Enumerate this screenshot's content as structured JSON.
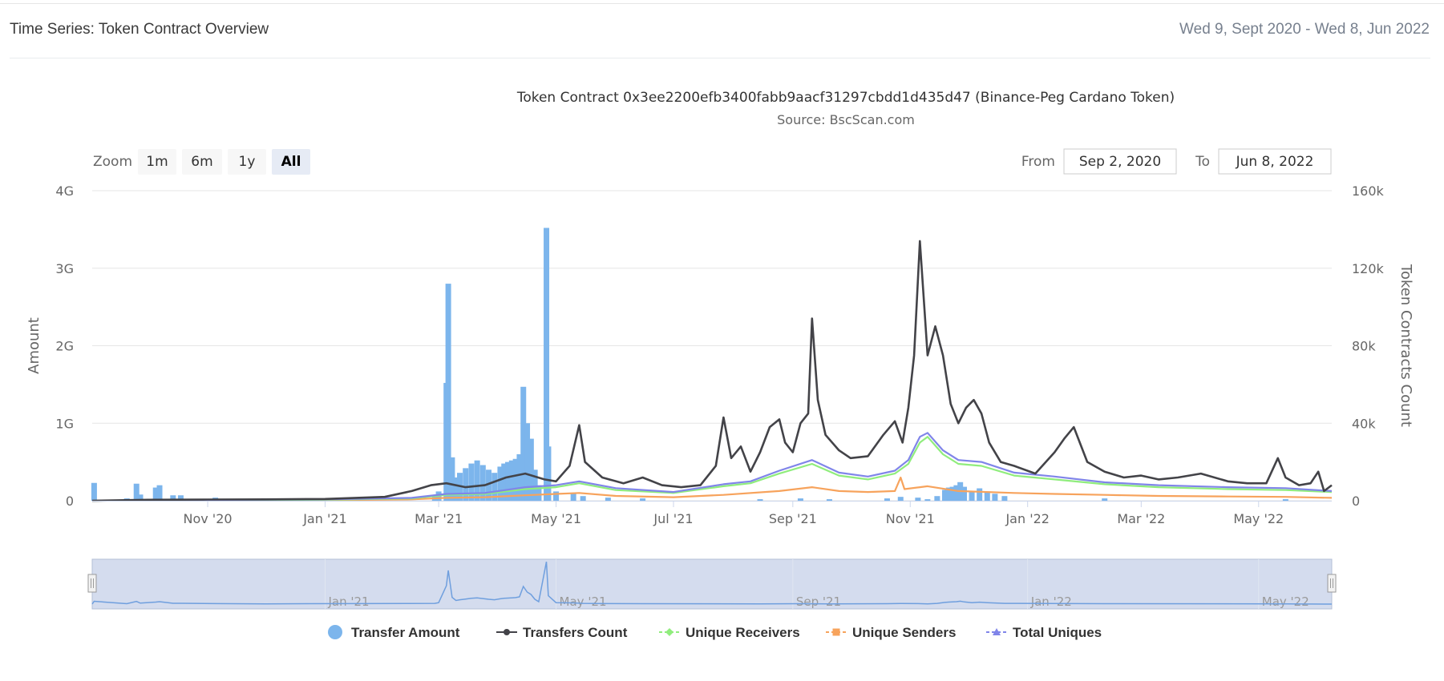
{
  "header": {
    "title": "Time Series: Token Contract Overview",
    "date_range": "Wed 9, Sept 2020 - Wed 8, Jun 2022"
  },
  "controls": {
    "zoom_label": "Zoom",
    "zoom_buttons": [
      "1m",
      "6m",
      "1y",
      "All"
    ],
    "active_zoom": "All",
    "from_label": "From",
    "from_value": "Sep 2, 2020",
    "to_label": "To",
    "to_value": "Jun 8, 2022"
  },
  "colors": {
    "transfer_amount": "#7cb5ec",
    "transfers_count": "#434348",
    "unique_receivers": "#90ed7d",
    "unique_senders": "#f7a35c",
    "total_uniques": "#8085e9",
    "navigator_fill": "#ccd6eb",
    "navigator_line": "#6f9fde"
  },
  "chart_data": {
    "type": "line",
    "title": "Token Contract 0x3ee2200efb3400fabb9aacf31297cbdd1d435d47 (Binance-Peg Cardano Token)",
    "subtitle": "Source: BscScan.com",
    "x_range": [
      "2020-09-02",
      "2022-06-08"
    ],
    "x_ticks": [
      {
        "date": "2020-11-01",
        "label": "Nov '20"
      },
      {
        "date": "2021-01-01",
        "label": "Jan '21"
      },
      {
        "date": "2021-03-01",
        "label": "Mar '21"
      },
      {
        "date": "2021-05-01",
        "label": "May '21"
      },
      {
        "date": "2021-07-01",
        "label": "Jul '21"
      },
      {
        "date": "2021-09-01",
        "label": "Sep '21"
      },
      {
        "date": "2021-11-01",
        "label": "Nov '21"
      },
      {
        "date": "2022-01-01",
        "label": "Jan '22"
      },
      {
        "date": "2022-03-01",
        "label": "Mar '22"
      },
      {
        "date": "2022-05-01",
        "label": "May '22"
      }
    ],
    "navigator_ticks": [
      {
        "date": "2021-01-01",
        "label": "Jan '21"
      },
      {
        "date": "2021-05-01",
        "label": "May '21"
      },
      {
        "date": "2021-09-01",
        "label": "Sep '21"
      },
      {
        "date": "2022-01-01",
        "label": "Jan '22"
      },
      {
        "date": "2022-05-01",
        "label": "May '22"
      }
    ],
    "y_left": {
      "label": "Amount",
      "min": 0,
      "max": 4000000000,
      "tick_values": [
        0,
        1000000000,
        2000000000,
        3000000000,
        4000000000
      ],
      "tick_labels": [
        "0",
        "1G",
        "2G",
        "3G",
        "4G"
      ]
    },
    "y_right": {
      "label": "Token Contracts Count",
      "min": 0,
      "max": 160000,
      "tick_values": [
        0,
        40000,
        80000,
        120000,
        160000
      ],
      "tick_labels": [
        "0",
        "40k",
        "80k",
        "120k",
        "160k"
      ]
    },
    "grid": true,
    "legend_position": "bottom-center",
    "series": [
      {
        "name": "Transfer Amount",
        "type": "column",
        "axis": "left",
        "color_key": "transfer_amount",
        "marker": "circle",
        "points": [
          [
            "2020-09-03",
            230000000
          ],
          [
            "2020-09-20",
            30000000
          ],
          [
            "2020-09-25",
            220000000
          ],
          [
            "2020-09-27",
            80000000
          ],
          [
            "2020-10-05",
            170000000
          ],
          [
            "2020-10-07",
            200000000
          ],
          [
            "2020-10-14",
            70000000
          ],
          [
            "2020-10-18",
            70000000
          ],
          [
            "2020-11-05",
            40000000
          ],
          [
            "2020-12-01",
            20000000
          ],
          [
            "2021-02-27",
            60000000
          ],
          [
            "2021-03-01",
            120000000
          ],
          [
            "2021-03-05",
            1520000000
          ],
          [
            "2021-03-06",
            2800000000
          ],
          [
            "2021-03-08",
            560000000
          ],
          [
            "2021-03-10",
            300000000
          ],
          [
            "2021-03-12",
            360000000
          ],
          [
            "2021-03-15",
            420000000
          ],
          [
            "2021-03-18",
            480000000
          ],
          [
            "2021-03-21",
            520000000
          ],
          [
            "2021-03-24",
            460000000
          ],
          [
            "2021-03-27",
            400000000
          ],
          [
            "2021-03-30",
            360000000
          ],
          [
            "2021-04-02",
            440000000
          ],
          [
            "2021-04-04",
            480000000
          ],
          [
            "2021-04-06",
            500000000
          ],
          [
            "2021-04-08",
            520000000
          ],
          [
            "2021-04-10",
            540000000
          ],
          [
            "2021-04-12",
            600000000
          ],
          [
            "2021-04-14",
            1470000000
          ],
          [
            "2021-04-16",
            1000000000
          ],
          [
            "2021-04-18",
            800000000
          ],
          [
            "2021-04-20",
            400000000
          ],
          [
            "2021-04-22",
            200000000
          ],
          [
            "2021-04-26",
            3520000000
          ],
          [
            "2021-04-27",
            700000000
          ],
          [
            "2021-05-01",
            120000000
          ],
          [
            "2021-05-10",
            100000000
          ],
          [
            "2021-05-15",
            60000000
          ],
          [
            "2021-05-28",
            40000000
          ],
          [
            "2021-06-15",
            30000000
          ],
          [
            "2021-08-15",
            20000000
          ],
          [
            "2021-09-05",
            30000000
          ],
          [
            "2021-09-20",
            20000000
          ],
          [
            "2021-10-20",
            30000000
          ],
          [
            "2021-10-27",
            50000000
          ],
          [
            "2021-11-05",
            40000000
          ],
          [
            "2021-11-10",
            20000000
          ],
          [
            "2021-11-15",
            60000000
          ],
          [
            "2021-11-19",
            140000000
          ],
          [
            "2021-11-21",
            170000000
          ],
          [
            "2021-11-23",
            180000000
          ],
          [
            "2021-11-25",
            200000000
          ],
          [
            "2021-11-27",
            240000000
          ],
          [
            "2021-11-29",
            180000000
          ],
          [
            "2021-12-03",
            120000000
          ],
          [
            "2021-12-07",
            160000000
          ],
          [
            "2021-12-11",
            120000000
          ],
          [
            "2021-12-15",
            90000000
          ],
          [
            "2021-12-20",
            60000000
          ],
          [
            "2022-02-10",
            30000000
          ],
          [
            "2022-05-15",
            20000000
          ]
        ]
      },
      {
        "name": "Transfers Count",
        "type": "line",
        "axis": "right",
        "color_key": "transfers_count",
        "marker": "circle",
        "points": [
          [
            "2020-09-02",
            0
          ],
          [
            "2020-10-01",
            500
          ],
          [
            "2020-11-01",
            600
          ],
          [
            "2020-12-01",
            700
          ],
          [
            "2021-01-01",
            900
          ],
          [
            "2021-02-01",
            2000
          ],
          [
            "2021-02-15",
            5000
          ],
          [
            "2021-02-25",
            8000
          ],
          [
            "2021-03-05",
            9000
          ],
          [
            "2021-03-15",
            7000
          ],
          [
            "2021-03-25",
            8000
          ],
          [
            "2021-04-05",
            12000
          ],
          [
            "2021-04-15",
            14000
          ],
          [
            "2021-04-25",
            11000
          ],
          [
            "2021-05-01",
            10000
          ],
          [
            "2021-05-08",
            18000
          ],
          [
            "2021-05-13",
            39000
          ],
          [
            "2021-05-16",
            20000
          ],
          [
            "2021-05-25",
            12000
          ],
          [
            "2021-06-05",
            9000
          ],
          [
            "2021-06-15",
            12000
          ],
          [
            "2021-06-25",
            8000
          ],
          [
            "2021-07-05",
            7000
          ],
          [
            "2021-07-15",
            8000
          ],
          [
            "2021-07-23",
            18000
          ],
          [
            "2021-07-27",
            43000
          ],
          [
            "2021-07-31",
            22000
          ],
          [
            "2021-08-05",
            28000
          ],
          [
            "2021-08-10",
            15000
          ],
          [
            "2021-08-15",
            25000
          ],
          [
            "2021-08-20",
            38000
          ],
          [
            "2021-08-25",
            42000
          ],
          [
            "2021-08-28",
            30000
          ],
          [
            "2021-09-01",
            25000
          ],
          [
            "2021-09-05",
            40000
          ],
          [
            "2021-09-09",
            45000
          ],
          [
            "2021-09-11",
            94000
          ],
          [
            "2021-09-14",
            52000
          ],
          [
            "2021-09-18",
            34000
          ],
          [
            "2021-09-25",
            26000
          ],
          [
            "2021-10-01",
            22000
          ],
          [
            "2021-10-10",
            23000
          ],
          [
            "2021-10-18",
            34000
          ],
          [
            "2021-10-24",
            41000
          ],
          [
            "2021-10-28",
            30000
          ],
          [
            "2021-10-31",
            48000
          ],
          [
            "2021-11-03",
            75000
          ],
          [
            "2021-11-06",
            134000
          ],
          [
            "2021-11-10",
            75000
          ],
          [
            "2021-11-14",
            90000
          ],
          [
            "2021-11-18",
            75000
          ],
          [
            "2021-11-22",
            50000
          ],
          [
            "2021-11-26",
            40000
          ],
          [
            "2021-11-30",
            48000
          ],
          [
            "2021-12-04",
            52000
          ],
          [
            "2021-12-08",
            45000
          ],
          [
            "2021-12-12",
            30000
          ],
          [
            "2021-12-18",
            20000
          ],
          [
            "2021-12-25",
            18000
          ],
          [
            "2022-01-05",
            14000
          ],
          [
            "2022-01-15",
            25000
          ],
          [
            "2022-01-20",
            32000
          ],
          [
            "2022-01-25",
            38000
          ],
          [
            "2022-02-01",
            20000
          ],
          [
            "2022-02-10",
            15000
          ],
          [
            "2022-02-20",
            12000
          ],
          [
            "2022-03-01",
            13000
          ],
          [
            "2022-03-10",
            11000
          ],
          [
            "2022-03-20",
            12000
          ],
          [
            "2022-04-01",
            14000
          ],
          [
            "2022-04-15",
            10000
          ],
          [
            "2022-04-25",
            9000
          ],
          [
            "2022-05-05",
            9000
          ],
          [
            "2022-05-11",
            22000
          ],
          [
            "2022-05-15",
            12000
          ],
          [
            "2022-05-22",
            8000
          ],
          [
            "2022-05-28",
            9000
          ],
          [
            "2022-06-01",
            15000
          ],
          [
            "2022-06-04",
            5000
          ],
          [
            "2022-06-08",
            8000
          ]
        ]
      },
      {
        "name": "Unique Receivers",
        "type": "line",
        "axis": "right",
        "color_key": "unique_receivers",
        "marker": "diamond",
        "points": [
          [
            "2020-09-02",
            0
          ],
          [
            "2020-11-01",
            300
          ],
          [
            "2021-01-01",
            500
          ],
          [
            "2021-02-15",
            1200
          ],
          [
            "2021-03-05",
            3000
          ],
          [
            "2021-03-25",
            3500
          ],
          [
            "2021-04-15",
            6000
          ],
          [
            "2021-05-01",
            7000
          ],
          [
            "2021-05-13",
            9000
          ],
          [
            "2021-06-01",
            5500
          ],
          [
            "2021-07-01",
            4000
          ],
          [
            "2021-07-27",
            7500
          ],
          [
            "2021-08-10",
            9000
          ],
          [
            "2021-08-25",
            14000
          ],
          [
            "2021-09-11",
            19000
          ],
          [
            "2021-09-25",
            13000
          ],
          [
            "2021-10-10",
            11000
          ],
          [
            "2021-10-24",
            14000
          ],
          [
            "2021-10-31",
            19000
          ],
          [
            "2021-11-06",
            30000
          ],
          [
            "2021-11-10",
            33000
          ],
          [
            "2021-11-18",
            24000
          ],
          [
            "2021-11-26",
            19000
          ],
          [
            "2021-12-08",
            18000
          ],
          [
            "2021-12-25",
            13000
          ],
          [
            "2022-01-15",
            11000
          ],
          [
            "2022-02-10",
            8500
          ],
          [
            "2022-03-10",
            7000
          ],
          [
            "2022-04-15",
            6000
          ],
          [
            "2022-05-15",
            5500
          ],
          [
            "2022-06-08",
            4500
          ]
        ]
      },
      {
        "name": "Unique Senders",
        "type": "line",
        "axis": "right",
        "color_key": "unique_senders",
        "marker": "square",
        "points": [
          [
            "2020-09-02",
            0
          ],
          [
            "2020-11-01",
            200
          ],
          [
            "2021-01-01",
            300
          ],
          [
            "2021-02-15",
            700
          ],
          [
            "2021-03-05",
            1500
          ],
          [
            "2021-03-25",
            1800
          ],
          [
            "2021-04-15",
            2800
          ],
          [
            "2021-05-01",
            3500
          ],
          [
            "2021-05-13",
            4000
          ],
          [
            "2021-06-01",
            2500
          ],
          [
            "2021-07-01",
            1800
          ],
          [
            "2021-07-27",
            3000
          ],
          [
            "2021-08-25",
            5000
          ],
          [
            "2021-09-11",
            7000
          ],
          [
            "2021-09-25",
            5000
          ],
          [
            "2021-10-10",
            4500
          ],
          [
            "2021-10-24",
            5000
          ],
          [
            "2021-10-27",
            12000
          ],
          [
            "2021-10-29",
            6000
          ],
          [
            "2021-11-06",
            7000
          ],
          [
            "2021-11-10",
            7500
          ],
          [
            "2021-11-26",
            5000
          ],
          [
            "2021-12-25",
            4000
          ],
          [
            "2022-01-15",
            3500
          ],
          [
            "2022-02-10",
            3000
          ],
          [
            "2022-03-10",
            2500
          ],
          [
            "2022-04-15",
            2200
          ],
          [
            "2022-05-15",
            2000
          ],
          [
            "2022-06-08",
            1500
          ]
        ]
      },
      {
        "name": "Total Uniques",
        "type": "line",
        "axis": "right",
        "color_key": "total_uniques",
        "marker": "triangle",
        "points": [
          [
            "2020-09-02",
            0
          ],
          [
            "2020-11-01",
            400
          ],
          [
            "2021-01-01",
            700
          ],
          [
            "2021-02-15",
            1500
          ],
          [
            "2021-03-05",
            3500
          ],
          [
            "2021-03-25",
            4000
          ],
          [
            "2021-04-15",
            7000
          ],
          [
            "2021-05-01",
            8000
          ],
          [
            "2021-05-13",
            10000
          ],
          [
            "2021-06-01",
            6500
          ],
          [
            "2021-07-01",
            4500
          ],
          [
            "2021-07-27",
            8500
          ],
          [
            "2021-08-10",
            10000
          ],
          [
            "2021-08-25",
            15500
          ],
          [
            "2021-09-11",
            21000
          ],
          [
            "2021-09-25",
            14500
          ],
          [
            "2021-10-10",
            12500
          ],
          [
            "2021-10-24",
            15500
          ],
          [
            "2021-10-31",
            21000
          ],
          [
            "2021-11-06",
            33000
          ],
          [
            "2021-11-10",
            35000
          ],
          [
            "2021-11-18",
            26000
          ],
          [
            "2021-11-26",
            21000
          ],
          [
            "2021-12-08",
            20000
          ],
          [
            "2021-12-25",
            14500
          ],
          [
            "2022-01-15",
            12500
          ],
          [
            "2022-02-10",
            9500
          ],
          [
            "2022-03-10",
            8000
          ],
          [
            "2022-04-15",
            7000
          ],
          [
            "2022-05-15",
            6500
          ],
          [
            "2022-06-08",
            5000
          ]
        ]
      }
    ]
  }
}
